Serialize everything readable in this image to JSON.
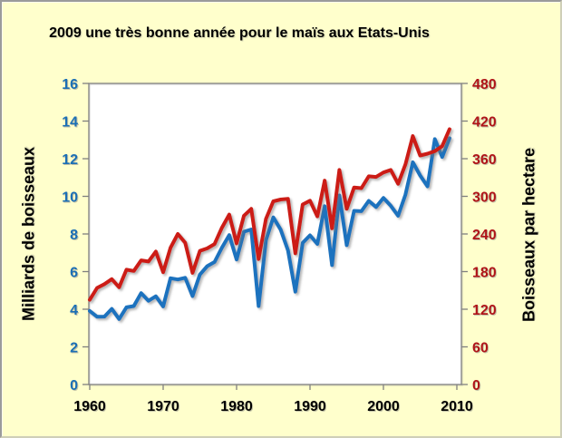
{
  "title": "2009 une très bonne année pour le maïs aux Etats-Unis",
  "colors": {
    "background": "#FFFFCC",
    "plot_background": "#FFFFFF",
    "grid": "#999999",
    "plot_border": "#7f7f7f",
    "tick_mark": "#7f7f7f",
    "title_text": "#000000",
    "x_tick_text": "#000000",
    "left_axis_text": "#1B6FB5",
    "right_axis_text": "#B01418",
    "production_line": "#1B72BE",
    "yield_line": "#CC1B16"
  },
  "chart_data": {
    "type": "line",
    "title": "2009 une très bonne année pour le maïs aux Etats-Unis",
    "grid": "horizontal",
    "legend_position": "none",
    "x_axis": {
      "label": "",
      "range": [
        1960,
        2010
      ],
      "ticks": [
        1960,
        1970,
        1980,
        1990,
        2000,
        2010
      ]
    },
    "left_axis": {
      "label": "Milliards de boisseaux",
      "range": [
        0,
        16
      ],
      "ticks": [
        0,
        2,
        4,
        6,
        8,
        10,
        12,
        14,
        16
      ],
      "color": "#1B6FB5"
    },
    "right_axis": {
      "label": "Boisseaux par hectare",
      "range": [
        0,
        480
      ],
      "ticks": [
        0,
        60,
        120,
        180,
        240,
        300,
        360,
        420,
        480
      ],
      "color": "#B01418"
    },
    "years": [
      1960,
      1961,
      1962,
      1963,
      1964,
      1965,
      1966,
      1967,
      1968,
      1969,
      1970,
      1971,
      1972,
      1973,
      1974,
      1975,
      1976,
      1977,
      1978,
      1979,
      1980,
      1981,
      1982,
      1983,
      1984,
      1985,
      1986,
      1987,
      1988,
      1989,
      1990,
      1991,
      1992,
      1993,
      1994,
      1995,
      1996,
      1997,
      1998,
      1999,
      2000,
      2001,
      2002,
      2003,
      2004,
      2005,
      2006,
      2007,
      2008,
      2009
    ],
    "series": [
      {
        "name": "Milliards de boisseaux",
        "axis": "left",
        "color": "#1B72BE",
        "values": [
          3.91,
          3.6,
          3.61,
          4.02,
          3.48,
          4.1,
          4.17,
          4.86,
          4.45,
          4.69,
          4.15,
          5.65,
          5.58,
          5.67,
          4.7,
          5.84,
          6.29,
          6.51,
          7.27,
          7.94,
          6.64,
          8.12,
          8.24,
          4.17,
          7.67,
          8.88,
          8.23,
          7.13,
          4.93,
          7.53,
          7.93,
          7.47,
          9.48,
          6.34,
          10.05,
          7.4,
          9.23,
          9.21,
          9.76,
          9.43,
          9.92,
          9.5,
          8.97,
          10.09,
          11.81,
          11.11,
          10.53,
          13.04,
          12.09,
          13.09
        ]
      },
      {
        "name": "Boisseaux par hectare",
        "axis": "right",
        "color": "#CC1B16",
        "values": [
          135,
          154,
          160,
          168,
          155,
          183,
          181,
          198,
          196,
          212,
          179,
          218,
          240,
          226,
          178,
          213,
          217,
          224,
          250,
          271,
          225,
          269,
          280,
          200,
          264,
          292,
          295,
          296,
          209,
          287,
          293,
          268,
          325,
          249,
          342,
          280,
          314,
          313,
          332,
          331,
          338,
          342,
          320,
          351,
          396,
          365,
          368,
          372,
          380,
          407
        ]
      }
    ]
  }
}
